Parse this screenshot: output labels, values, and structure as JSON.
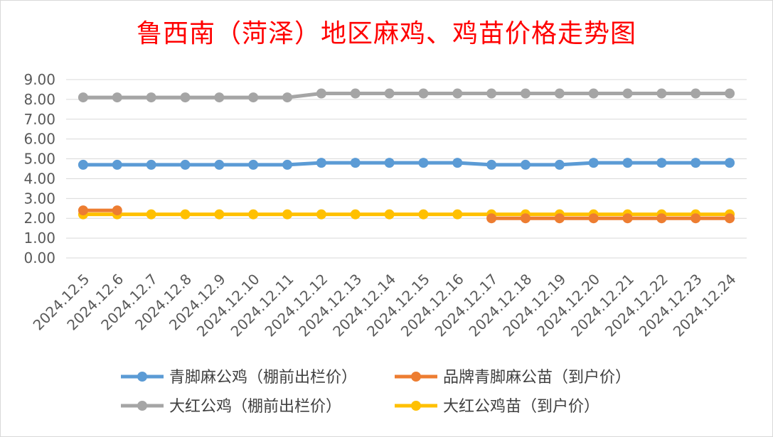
{
  "chart_data": {
    "type": "line",
    "title": "鲁西南（菏泽）地区麻鸡、鸡苗价格走势图",
    "xlabel": "",
    "ylabel": "",
    "ylim": [
      0,
      9
    ],
    "y_ticks": [
      "0.00",
      "1.00",
      "2.00",
      "3.00",
      "4.00",
      "5.00",
      "6.00",
      "7.00",
      "8.00",
      "9.00"
    ],
    "categories": [
      "2024.12.5",
      "2024.12.6",
      "2024.12.7",
      "2024.12.8",
      "2024.12.9",
      "2024.12.10",
      "2024.12.11",
      "2024.12.12",
      "2024.12.13",
      "2024.12.14",
      "2024.12.15",
      "2024.12.16",
      "2024.12.17",
      "2024.12.18",
      "2024.12.19",
      "2024.12.20",
      "2024.12.21",
      "2024.12.22",
      "2024.12.23",
      "2024.12.24"
    ],
    "grid": true,
    "legend_position": "bottom",
    "series": [
      {
        "name": "青脚麻公鸡（棚前出栏价）",
        "color": "#5b9bd5",
        "values": [
          4.7,
          4.7,
          4.7,
          4.7,
          4.7,
          4.7,
          4.7,
          4.8,
          4.8,
          4.8,
          4.8,
          4.8,
          4.7,
          4.7,
          4.7,
          4.8,
          4.8,
          4.8,
          4.8,
          4.8
        ]
      },
      {
        "name": "品牌青脚麻公苗（到户价）",
        "color": "#ed7d31",
        "values": [
          2.4,
          2.4,
          null,
          null,
          null,
          null,
          null,
          null,
          null,
          null,
          null,
          null,
          2.0,
          2.0,
          2.0,
          2.0,
          2.0,
          2.0,
          2.0,
          2.0
        ]
      },
      {
        "name": "大红公鸡（棚前出栏价）",
        "color": "#a5a5a5",
        "values": [
          8.1,
          8.1,
          8.1,
          8.1,
          8.1,
          8.1,
          8.1,
          8.3,
          8.3,
          8.3,
          8.3,
          8.3,
          8.3,
          8.3,
          8.3,
          8.3,
          8.3,
          8.3,
          8.3,
          8.3
        ]
      },
      {
        "name": "大红公鸡苗（到户价）",
        "color": "#ffc000",
        "values": [
          2.2,
          2.2,
          2.2,
          2.2,
          2.2,
          2.2,
          2.2,
          2.2,
          2.2,
          2.2,
          2.2,
          2.2,
          2.2,
          2.2,
          2.2,
          2.2,
          2.2,
          2.2,
          2.2,
          2.2
        ]
      }
    ]
  }
}
